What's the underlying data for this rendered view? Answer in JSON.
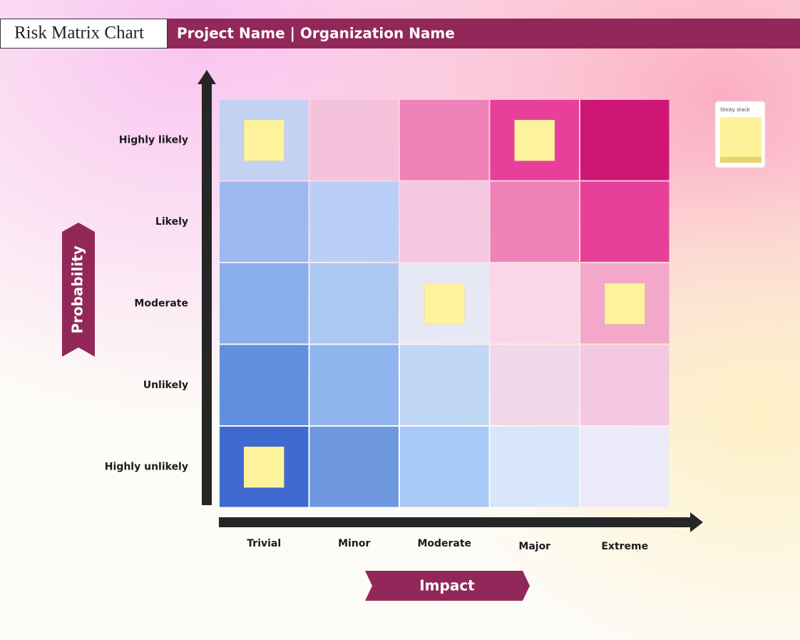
{
  "header": {
    "title": "Risk Matrix Chart",
    "subtitle": "Project Name | Organization Name"
  },
  "y_axis": {
    "title": "Probability",
    "labels": [
      "Highly likely",
      "Likely",
      "Moderate",
      "Unlikely",
      "Highly unlikely"
    ]
  },
  "x_axis": {
    "title": "Impact",
    "labels": [
      "Trivial",
      "Minor",
      "Moderate",
      "Major",
      "Extreme"
    ]
  },
  "matrix": {
    "colors": [
      [
        "#c3d1f2",
        "#f5c2dc",
        "#ef82b9",
        "#e8409a",
        "#cf1677"
      ],
      [
        "#9db9ef",
        "#b9cff8",
        "#f4c8e0",
        "#ef82b9",
        "#e8409a"
      ],
      [
        "#8aaeea",
        "#abc8f2",
        "#e6e8f6",
        "#f8d8e8",
        "#f2a7cb"
      ],
      [
        "#5f8fdd",
        "#90b5ee",
        "#c0d7f5",
        "#efd8ea",
        "#f4c8e2"
      ],
      [
        "#3f6bd0",
        "#6e98df",
        "#a8c8f5",
        "#d7e6fb",
        "#eceaf8"
      ]
    ]
  },
  "sticky_stack": {
    "label": "Sticky stack"
  }
}
